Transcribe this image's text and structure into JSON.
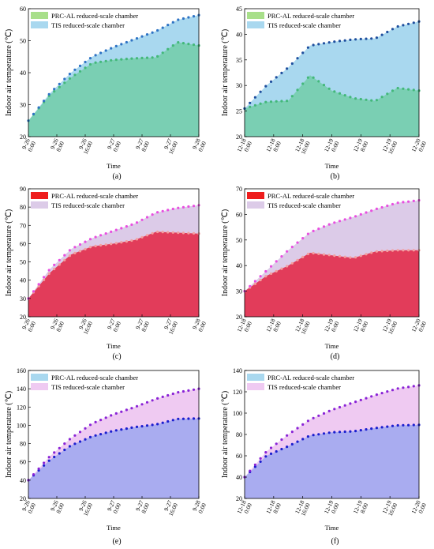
{
  "figure": {
    "panels_labels": [
      "(a)",
      "(b)",
      "(c)",
      "(d)",
      "(e)",
      "(f)"
    ]
  },
  "chart_data": [
    {
      "type": "area",
      "panel_label": "(a)",
      "xlabel": "Time",
      "ylabel": "Indoor air temperature (℃)",
      "ylim": [
        20,
        60
      ],
      "yticks": [
        20,
        30,
        40,
        50,
        60
      ],
      "x_ticks": [
        [
          "9-26",
          "0:00"
        ],
        [
          "9-26",
          "8:00"
        ],
        [
          "9-26",
          "16:00"
        ],
        [
          "9-27",
          "0:00"
        ],
        [
          "9-27",
          "8:00"
        ],
        [
          "9-27",
          "16:00"
        ],
        [
          "9-28",
          "0:00"
        ]
      ],
      "legend_position": "top-left",
      "series": [
        {
          "name": "PRC-AL reduced-scale chamber",
          "fill": "#7acfb3",
          "legend_color": "#a8df8a",
          "marker": "#43b87a",
          "values": [
            25.0,
            33.0,
            38.5,
            43.0,
            44.0,
            44.5,
            44.8,
            49.5,
            48.5
          ]
        },
        {
          "name": "TIS reduced-scale chamber",
          "fill": "#a9d8ef",
          "legend_color": "#a9d8ef",
          "marker": "#2f73c4",
          "values": [
            25.0,
            33.5,
            40.0,
            45.0,
            48.0,
            50.5,
            53.0,
            56.5,
            58.0
          ]
        }
      ]
    },
    {
      "type": "area",
      "panel_label": "(b)",
      "xlabel": "Time",
      "ylabel": "Indoor air temperature (℃)",
      "ylim": [
        20,
        45
      ],
      "yticks": [
        20,
        25,
        30,
        35,
        40,
        45
      ],
      "x_ticks": [
        [
          "12-18",
          "0:00"
        ],
        [
          "12-18",
          "8:00"
        ],
        [
          "12-18",
          "16:00"
        ],
        [
          "12-19",
          "0:00"
        ],
        [
          "12-19",
          "8:00"
        ],
        [
          "12-19",
          "16:00"
        ],
        [
          "12-20",
          "0:00"
        ]
      ],
      "legend_position": "top-left",
      "series": [
        {
          "name": "PRC-AL reduced-scale chamber",
          "fill": "#7acfb3",
          "legend_color": "#a8df8a",
          "marker": "#43b87a",
          "values": [
            25.5,
            26.8,
            27.0,
            32.0,
            29.0,
            27.5,
            27.0,
            29.5,
            29.0
          ]
        },
        {
          "name": "TIS reduced-scale chamber",
          "fill": "#a9d8ef",
          "legend_color": "#a9d8ef",
          "marker": "#1f4f9e",
          "values": [
            25.5,
            30.0,
            33.5,
            37.8,
            38.5,
            39.0,
            39.2,
            41.5,
            42.5
          ]
        }
      ]
    },
    {
      "type": "area",
      "panel_label": "(c)",
      "xlabel": "Time",
      "ylabel": "Indoor air temperature (℃)",
      "ylim": [
        20,
        90
      ],
      "yticks": [
        20,
        30,
        40,
        50,
        60,
        70,
        80,
        90
      ],
      "x_ticks": [
        [
          "9-26",
          "0:00"
        ],
        [
          "9-26",
          "8:00"
        ],
        [
          "9-26",
          "16:00"
        ],
        [
          "9-27",
          "0:00"
        ],
        [
          "9-27",
          "8:00"
        ],
        [
          "9-27",
          "16:00"
        ],
        [
          "9-28",
          "0:00"
        ]
      ],
      "legend_position": "top-left",
      "series": [
        {
          "name": "PRC-AL reduced-scale chamber",
          "fill": "#e23c5a",
          "legend_color": "#ee1c1c",
          "marker": "#f3a0a0",
          "values": [
            30.0,
            44.0,
            54.0,
            58.5,
            60.0,
            62.0,
            66.5,
            66.0,
            65.5
          ]
        },
        {
          "name": "TIS reduced-scale chamber",
          "fill": "#dccbe8",
          "legend_color": "#dccbe8",
          "marker": "#e84fe0",
          "values": [
            30.0,
            46.0,
            57.0,
            63.0,
            67.0,
            71.0,
            77.0,
            79.5,
            81.0
          ]
        }
      ]
    },
    {
      "type": "area",
      "panel_label": "(d)",
      "xlabel": "Time",
      "ylabel": "Indoor air temperature (℃)",
      "ylim": [
        20,
        70
      ],
      "yticks": [
        20,
        30,
        40,
        50,
        60,
        70
      ],
      "x_ticks": [
        [
          "12-18",
          "0:00"
        ],
        [
          "12-18",
          "8:00"
        ],
        [
          "12-18",
          "16:00"
        ],
        [
          "12-19",
          "0:00"
        ],
        [
          "12-19",
          "8:00"
        ],
        [
          "12-19",
          "16:00"
        ],
        [
          "12-20",
          "0:00"
        ]
      ],
      "legend_position": "top-left",
      "series": [
        {
          "name": "PRC-AL reduced-scale chamber",
          "fill": "#e23c5a",
          "legend_color": "#ee1c1c",
          "marker": "#f3a0a0",
          "values": [
            30.0,
            36.0,
            40.0,
            45.0,
            44.0,
            43.0,
            45.5,
            46.0,
            46.0
          ]
        },
        {
          "name": "TIS reduced-scale chamber",
          "fill": "#dccbe8",
          "legend_color": "#dccbe8",
          "marker": "#e84fe0",
          "values": [
            30.0,
            38.0,
            46.0,
            53.0,
            56.5,
            59.0,
            62.0,
            64.5,
            65.5
          ]
        }
      ]
    },
    {
      "type": "area",
      "panel_label": "(e)",
      "xlabel": "Time",
      "ylabel": "Indoor air temperature (℃)",
      "ylim": [
        20,
        160
      ],
      "yticks": [
        20,
        40,
        60,
        80,
        100,
        120,
        140,
        160
      ],
      "x_ticks": [
        [
          "9-26",
          "0:00"
        ],
        [
          "9-26",
          "8:00"
        ],
        [
          "9-26",
          "16:00"
        ],
        [
          "9-27",
          "0:00"
        ],
        [
          "9-27",
          "8:00"
        ],
        [
          "9-27",
          "16:00"
        ],
        [
          "9-28",
          "0:00"
        ]
      ],
      "legend_position": "top-left",
      "series": [
        {
          "name": "PRC-AL reduced-scale chamber",
          "fill": "#a9acf0",
          "legend_color": "#a9d8ef",
          "marker": "#1c1fcf",
          "values": [
            40.0,
            62.0,
            78.0,
            88.0,
            94.0,
            98.0,
            101.0,
            107.0,
            107.5
          ]
        },
        {
          "name": "TIS reduced-scale chamber",
          "fill": "#efcaf2",
          "legend_color": "#efcaf2",
          "marker": "#8a23d6",
          "values": [
            40.0,
            66.0,
            86.0,
            102.0,
            112.0,
            120.0,
            129.0,
            136.0,
            140.0
          ]
        }
      ]
    },
    {
      "type": "area",
      "panel_label": "(f)",
      "xlabel": "Time",
      "ylabel": "Indoor air temperature (℃)",
      "ylim": [
        20,
        140
      ],
      "yticks": [
        20,
        40,
        60,
        80,
        100,
        120,
        140
      ],
      "x_ticks": [
        [
          "12-18",
          "0:00"
        ],
        [
          "12-18",
          "8:00"
        ],
        [
          "12-18",
          "16:00"
        ],
        [
          "12-19",
          "0:00"
        ],
        [
          "12-19",
          "8:00"
        ],
        [
          "12-19",
          "16:00"
        ],
        [
          "12-20",
          "0:00"
        ]
      ],
      "legend_position": "top-left",
      "series": [
        {
          "name": "PRC-AL reduced-scale chamber",
          "fill": "#a9acf0",
          "legend_color": "#a9d8ef",
          "marker": "#1c1fcf",
          "values": [
            40.0,
            60.0,
            69.0,
            79.0,
            82.0,
            83.0,
            86.0,
            88.5,
            89.0
          ]
        },
        {
          "name": "TIS reduced-scale chamber",
          "fill": "#efcaf2",
          "legend_color": "#efcaf2",
          "marker": "#8a23d6",
          "values": [
            40.0,
            64.0,
            80.0,
            94.0,
            103.0,
            110.0,
            117.0,
            123.0,
            126.0
          ]
        }
      ]
    }
  ]
}
